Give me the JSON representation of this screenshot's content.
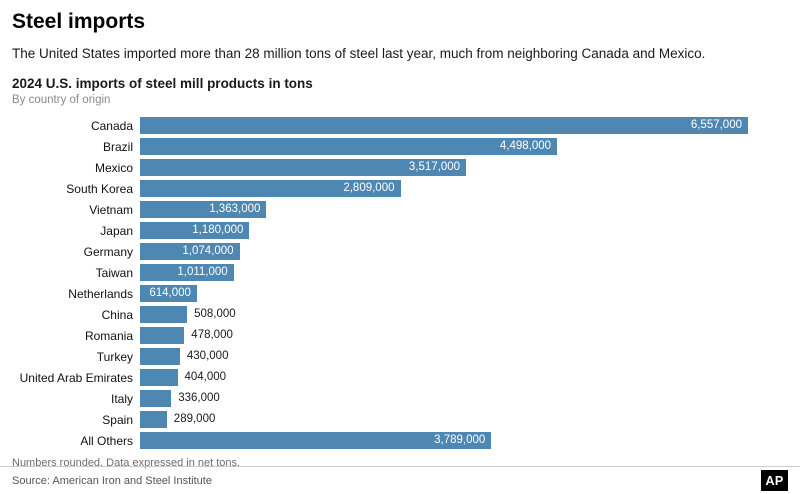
{
  "header": {
    "title": "Steel imports",
    "subtitle": "The United States imported more than 28 million tons of steel last year, much from neighboring Canada and Mexico."
  },
  "chart": {
    "title": "2024 U.S. imports of steel mill products in tons",
    "subtitle": "By country of origin"
  },
  "chart_data": {
    "type": "bar",
    "orientation": "horizontal",
    "title": "2024 U.S. imports of steel mill products in tons",
    "xlabel": "",
    "ylabel": "",
    "xlim": [
      0,
      6800000
    ],
    "grid": false,
    "legend": false,
    "bar_color": "#4e87b2",
    "inside_label_threshold": 600000,
    "categories": [
      "Canada",
      "Brazil",
      "Mexico",
      "South Korea",
      "Vietnam",
      "Japan",
      "Germany",
      "Taiwan",
      "Netherlands",
      "China",
      "Romania",
      "Turkey",
      "United Arab Emirates",
      "Italy",
      "Spain",
      "All Others"
    ],
    "values": [
      6557000,
      4498000,
      3517000,
      2809000,
      1363000,
      1180000,
      1074000,
      1011000,
      614000,
      508000,
      478000,
      430000,
      404000,
      336000,
      289000,
      3789000
    ],
    "value_labels": [
      "6,557,000",
      "4,498,000",
      "3,517,000",
      "2,809,000",
      "1,363,000",
      "1,180,000",
      "1,074,000",
      "1,011,000",
      "614,000",
      "508,000",
      "478,000",
      "430,000",
      "404,000",
      "336,000",
      "289,000",
      "3,789,000"
    ]
  },
  "footer": {
    "note": "Numbers rounded. Data expressed in net tons.",
    "source": "Source: American Iron and Steel Institute",
    "logo": "AP"
  }
}
